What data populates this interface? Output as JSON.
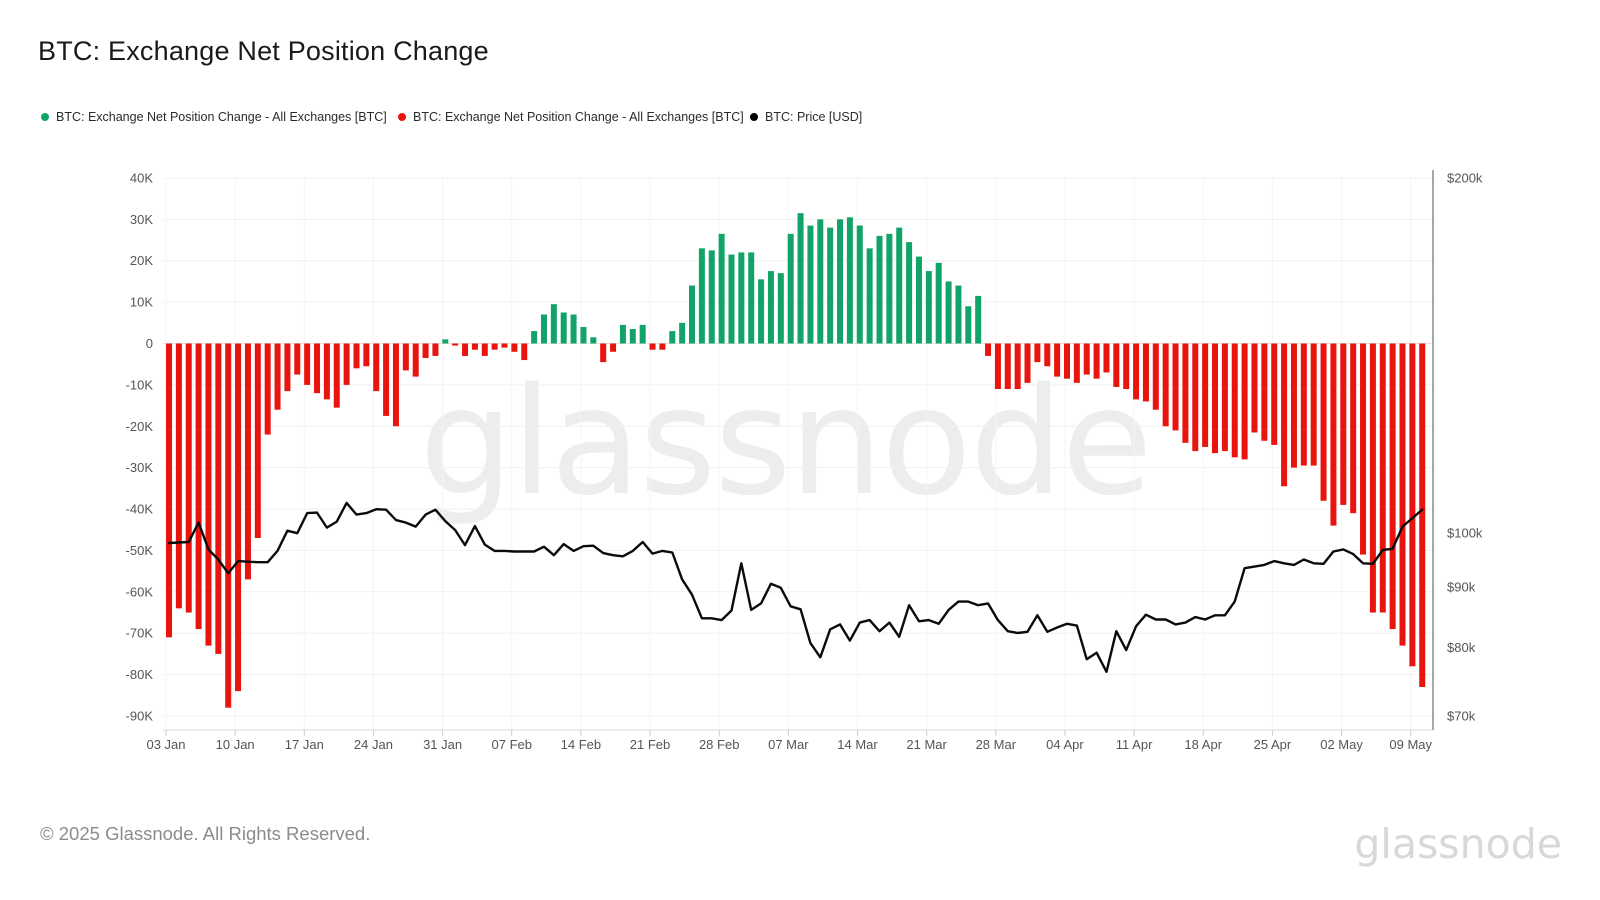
{
  "header": {
    "title": "BTC: Exchange Net Position Change"
  },
  "legend": [
    {
      "label": "BTC: Exchange Net Position Change - All Exchanges [BTC]",
      "color": "#11a368",
      "icon": "green-dot-icon"
    },
    {
      "label": "BTC: Exchange Net Position Change - All Exchanges [BTC]",
      "color": "#e9140d",
      "icon": "red-dot-icon"
    },
    {
      "label": "BTC: Price [USD]",
      "color": "#000000",
      "icon": "black-dot-icon"
    }
  ],
  "watermark": "glassnode",
  "footer": {
    "copyright": "© 2025 Glassnode. All Rights Reserved.",
    "brand": "glassnode"
  },
  "chart_data": {
    "type": "bar+line",
    "title": "BTC: Exchange Net Position Change",
    "frequency": "daily",
    "first_bar_label": "03 Jan",
    "last_bar_label": "10 May",
    "x_tick_labels": [
      "03 Jan",
      "10 Jan",
      "17 Jan",
      "24 Jan",
      "31 Jan",
      "07 Feb",
      "14 Feb",
      "21 Feb",
      "28 Feb",
      "07 Mar",
      "14 Mar",
      "21 Mar",
      "28 Mar",
      "04 Apr",
      "11 Apr",
      "18 Apr",
      "25 Apr",
      "02 May",
      "09 May"
    ],
    "left_axis": {
      "unit": "BTC (thousands)",
      "tick_labels": [
        "40K",
        "30K",
        "20K",
        "10K",
        "0",
        "-10K",
        "-20K",
        "-30K",
        "-40K",
        "-50K",
        "-60K",
        "-70K",
        "-80K",
        "-90K"
      ],
      "tick_values": [
        40,
        30,
        20,
        10,
        0,
        -10,
        -20,
        -30,
        -40,
        -50,
        -60,
        -70,
        -80,
        -90
      ],
      "range": [
        -90,
        40
      ],
      "grid": true
    },
    "right_axis": {
      "unit": "USD (thousands)",
      "scale": "log",
      "tick_labels": [
        "$200k",
        "$100k",
        "$90k",
        "$80k",
        "$70k"
      ],
      "tick_values": [
        200,
        100,
        90,
        80,
        70
      ],
      "range": [
        70,
        200
      ]
    },
    "series": [
      {
        "name": "BTC: Exchange Net Position Change - All Exchanges [BTC]",
        "type": "bar",
        "axis": "left",
        "positive_color": "#11a368",
        "negative_color": "#e9140d",
        "values_k": [
          -71,
          -64,
          -65,
          -69,
          -73,
          -75,
          -88,
          -84,
          -57,
          -47,
          -22,
          -16,
          -11.5,
          -7.5,
          -10,
          -12,
          -13.5,
          -15.5,
          -10,
          -6,
          -5.5,
          -11.5,
          -17.5,
          -20,
          -6.5,
          -8,
          -3.5,
          -3,
          1,
          -0.5,
          -3,
          -1.5,
          -3,
          -1.5,
          -1,
          -2,
          -4,
          3,
          7,
          9.5,
          7.5,
          7,
          4,
          1.5,
          -4.5,
          -2,
          4.5,
          3.5,
          4.5,
          -1.5,
          -1.5,
          3,
          5,
          14,
          23,
          22.5,
          26.5,
          21.5,
          22,
          22,
          15.5,
          17.5,
          17,
          26.5,
          31.5,
          28.5,
          30,
          28,
          30,
          30.5,
          28.5,
          23,
          26,
          26.5,
          28,
          24.5,
          21,
          17.5,
          19.5,
          15,
          14,
          9,
          11.5,
          -3,
          -11,
          -11,
          -11,
          -9.5,
          -4.5,
          -5.5,
          -8,
          -8.5,
          -9.5,
          -7.5,
          -8.5,
          -7,
          -10.5,
          -11,
          -13.5,
          -14,
          -16,
          -20,
          -21,
          -24,
          -26,
          -25,
          -26.5,
          -26,
          -27.5,
          -28,
          -21.5,
          -23.5,
          -24.5,
          -34.5,
          -30,
          -29.5,
          -29.5,
          -38,
          -44,
          -39,
          -41,
          -51,
          -65,
          -65,
          -69,
          -73,
          -78,
          -83
        ]
      },
      {
        "name": "BTC: Price [USD]",
        "type": "line",
        "axis": "right",
        "color": "#0b0b0b",
        "values_usd_k": [
          98.1,
          98.2,
          98.3,
          102.1,
          96.9,
          95.0,
          92.5,
          94.7,
          94.6,
          94.5,
          94.5,
          96.6,
          100.5,
          100.0,
          104.0,
          104.1,
          101.1,
          102.3,
          106.1,
          103.7,
          104.0,
          104.8,
          104.7,
          102.6,
          102.1,
          101.3,
          103.7,
          104.7,
          102.4,
          100.6,
          97.7,
          101.4,
          97.8,
          96.6,
          96.6,
          96.5,
          96.5,
          96.5,
          97.4,
          95.8,
          97.9,
          96.6,
          97.5,
          97.6,
          96.2,
          95.8,
          95.6,
          96.6,
          98.3,
          96.1,
          96.6,
          96.3,
          91.4,
          88.7,
          84.7,
          84.7,
          84.4,
          86.0,
          94.3,
          86.1,
          87.2,
          90.6,
          89.9,
          86.7,
          86.2,
          80.7,
          78.5,
          82.9,
          83.7,
          81.1,
          84.0,
          84.4,
          82.6,
          84.0,
          81.7,
          86.9,
          84.2,
          84.4,
          83.8,
          86.1,
          87.5,
          87.5,
          86.9,
          87.2,
          84.4,
          82.6,
          82.3,
          82.5,
          85.2,
          82.5,
          83.2,
          83.8,
          83.5,
          78.2,
          79.2,
          76.3,
          82.6,
          79.6,
          83.4,
          85.3,
          84.5,
          84.5,
          83.7,
          84.0,
          84.9,
          84.5,
          85.2,
          85.2,
          87.5,
          93.4,
          93.7,
          94.0,
          94.7,
          94.3,
          94.0,
          95.0,
          94.3,
          94.2,
          96.5,
          96.9,
          96.0,
          94.3,
          94.2,
          96.8,
          97.0,
          101.3,
          103.0,
          104.7
        ]
      }
    ],
    "legend_position": "top",
    "grid": true
  }
}
